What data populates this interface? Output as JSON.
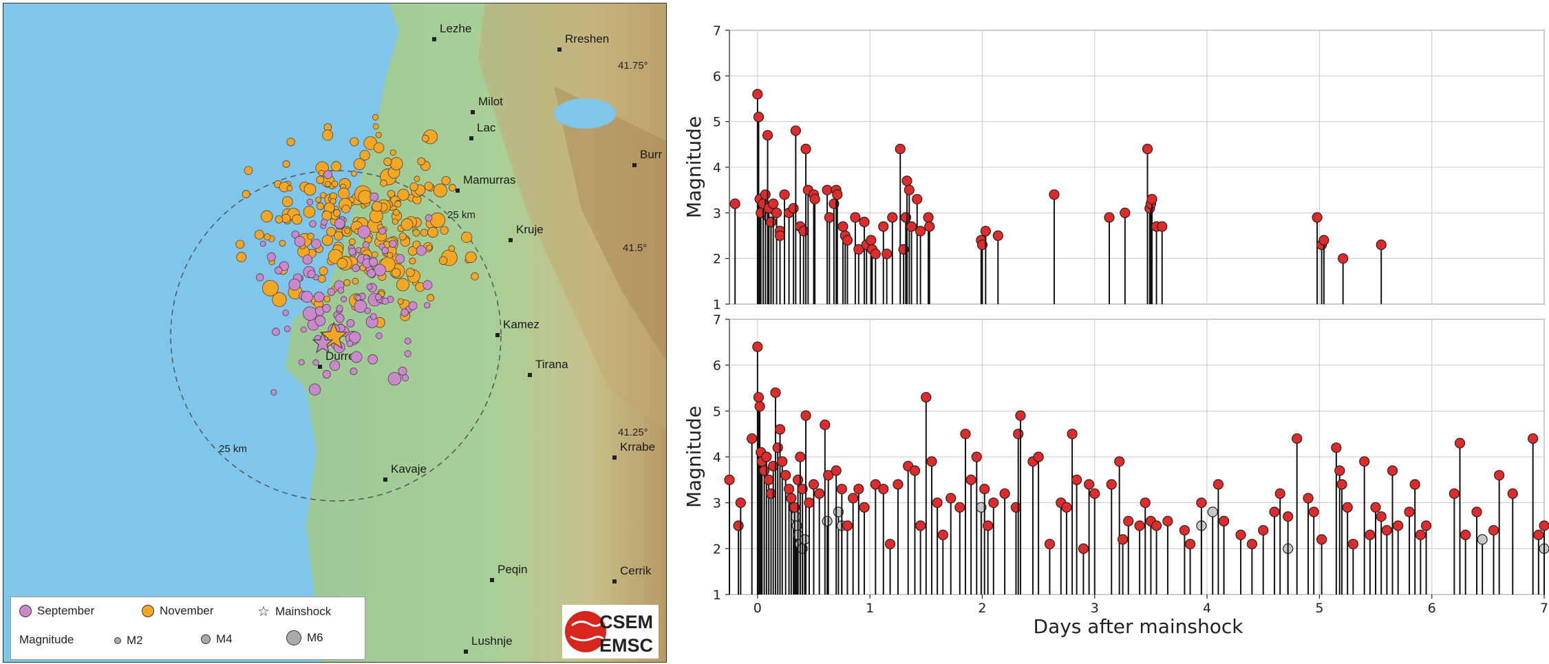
{
  "map": {
    "cities": [
      {
        "name": "Lezhe"
      },
      {
        "name": "Rreshen"
      },
      {
        "name": "Milot"
      },
      {
        "name": "Lac"
      },
      {
        "name": "Burr"
      },
      {
        "name": "Mamurras"
      },
      {
        "name": "Kruje"
      },
      {
        "name": "Kamez"
      },
      {
        "name": "Tirana"
      },
      {
        "name": "Durres"
      },
      {
        "name": "Kavaje"
      },
      {
        "name": "Krrabe"
      },
      {
        "name": "Peqin"
      },
      {
        "name": "Cerrik"
      },
      {
        "name": "Lushnje"
      }
    ],
    "lat_labels": [
      "41.75°",
      "41.5°",
      "41.25°"
    ],
    "ring_labels": [
      "25 km",
      "25 km"
    ],
    "colors": {
      "september": "#cc88cc",
      "november": "#f5a623",
      "sea": "#7cc4e8",
      "land": "#98c48e"
    }
  },
  "legend": {
    "september": "September",
    "november": "November",
    "mainshock": "Mainshock",
    "magnitude": "Magnitude",
    "m2": "M2",
    "m4": "M4",
    "m6": "M6"
  },
  "logo": {
    "line1": "CSEM",
    "line2": "EMSC"
  },
  "chart_data": [
    {
      "type": "scatter",
      "title": "",
      "xlabel": "",
      "ylabel": "Magnitude",
      "xlim": [
        -0.25,
        7
      ],
      "ylim": [
        1,
        7
      ],
      "x_ticks": [],
      "y_ticks": [
        1,
        2,
        3,
        4,
        5,
        6,
        7
      ],
      "grid": true,
      "colors": {
        "marker": "#e02b2b",
        "grey_marker": "#c8c8c8",
        "stem": "#111111"
      },
      "points": [
        {
          "x": -0.2,
          "y": 3.2
        },
        {
          "x": 0,
          "y": 5.6
        },
        {
          "x": 0.01,
          "y": 5.1
        },
        {
          "x": 0.02,
          "y": 3.3
        },
        {
          "x": 0.03,
          "y": 3.0
        },
        {
          "x": 0.05,
          "y": 3.2
        },
        {
          "x": 0.07,
          "y": 3.4
        },
        {
          "x": 0.09,
          "y": 4.7
        },
        {
          "x": 0.1,
          "y": 3.1
        },
        {
          "x": 0.12,
          "y": 2.8
        },
        {
          "x": 0.14,
          "y": 3.2
        },
        {
          "x": 0.17,
          "y": 3.0
        },
        {
          "x": 0.2,
          "y": 2.6
        },
        {
          "x": 0.2,
          "y": 2.5
        },
        {
          "x": 0.24,
          "y": 3.4
        },
        {
          "x": 0.28,
          "y": 3.0
        },
        {
          "x": 0.32,
          "y": 3.1
        },
        {
          "x": 0.34,
          "y": 4.8
        },
        {
          "x": 0.38,
          "y": 2.7
        },
        {
          "x": 0.41,
          "y": 2.6
        },
        {
          "x": 0.43,
          "y": 4.4
        },
        {
          "x": 0.45,
          "y": 3.5
        },
        {
          "x": 0.5,
          "y": 3.4
        },
        {
          "x": 0.51,
          "y": 3.3
        },
        {
          "x": 0.62,
          "y": 3.5
        },
        {
          "x": 0.64,
          "y": 2.9
        },
        {
          "x": 0.68,
          "y": 3.2
        },
        {
          "x": 0.7,
          "y": 3.5
        },
        {
          "x": 0.71,
          "y": 3.4
        },
        {
          "x": 0.76,
          "y": 2.7
        },
        {
          "x": 0.78,
          "y": 2.5
        },
        {
          "x": 0.8,
          "y": 2.4
        },
        {
          "x": 0.87,
          "y": 2.9
        },
        {
          "x": 0.9,
          "y": 2.2
        },
        {
          "x": 0.95,
          "y": 2.8
        },
        {
          "x": 0.97,
          "y": 2.3
        },
        {
          "x": 1.01,
          "y": 2.4
        },
        {
          "x": 1.02,
          "y": 2.2
        },
        {
          "x": 1.05,
          "y": 2.1
        },
        {
          "x": 1.12,
          "y": 2.7
        },
        {
          "x": 1.15,
          "y": 2.1
        },
        {
          "x": 1.2,
          "y": 2.9
        },
        {
          "x": 1.27,
          "y": 4.4
        },
        {
          "x": 1.3,
          "y": 2.2
        },
        {
          "x": 1.32,
          "y": 2.9
        },
        {
          "x": 1.33,
          "y": 3.7
        },
        {
          "x": 1.35,
          "y": 3.5
        },
        {
          "x": 1.37,
          "y": 2.7
        },
        {
          "x": 1.42,
          "y": 3.3
        },
        {
          "x": 1.45,
          "y": 2.6
        },
        {
          "x": 1.52,
          "y": 2.9
        },
        {
          "x": 1.53,
          "y": 2.7
        },
        {
          "x": 1.99,
          "y": 2.4
        },
        {
          "x": 2.0,
          "y": 2.3
        },
        {
          "x": 2.03,
          "y": 2.6
        },
        {
          "x": 2.14,
          "y": 2.5
        },
        {
          "x": 2.64,
          "y": 3.4
        },
        {
          "x": 3.13,
          "y": 2.9
        },
        {
          "x": 3.27,
          "y": 3.0
        },
        {
          "x": 3.47,
          "y": 4.4
        },
        {
          "x": 3.49,
          "y": 3.1
        },
        {
          "x": 3.5,
          "y": 3.2
        },
        {
          "x": 3.51,
          "y": 3.3
        },
        {
          "x": 3.55,
          "y": 2.7
        },
        {
          "x": 3.6,
          "y": 2.7
        },
        {
          "x": 4.98,
          "y": 2.9
        },
        {
          "x": 5.02,
          "y": 2.3
        },
        {
          "x": 5.04,
          "y": 2.4
        },
        {
          "x": 5.21,
          "y": 2.0
        },
        {
          "x": 5.55,
          "y": 2.3
        }
      ],
      "grey_points": [
        {
          "x": 0.1,
          "y": 2.9
        },
        {
          "x": 0.12,
          "y": 2.8
        },
        {
          "x": 0.2,
          "y": 2.6
        },
        {
          "x": 1.32,
          "y": 2.9
        }
      ]
    },
    {
      "type": "scatter",
      "title": "",
      "xlabel": "Days after mainshock",
      "ylabel": "Magnitude",
      "xlim": [
        -0.25,
        7
      ],
      "ylim": [
        1,
        7
      ],
      "x_ticks": [
        0,
        1,
        2,
        3,
        4,
        5,
        6,
        7
      ],
      "y_ticks": [
        1,
        2,
        3,
        4,
        5,
        6,
        7
      ],
      "grid": true,
      "colors": {
        "marker": "#e02b2b",
        "grey_marker": "#c8c8c8",
        "stem": "#111111"
      },
      "points": [
        {
          "x": -0.25,
          "y": 3.5
        },
        {
          "x": -0.17,
          "y": 2.5
        },
        {
          "x": -0.15,
          "y": 3.0
        },
        {
          "x": -0.05,
          "y": 4.4
        },
        {
          "x": 0,
          "y": 6.4
        },
        {
          "x": 0.01,
          "y": 5.3
        },
        {
          "x": 0.02,
          "y": 5.1
        },
        {
          "x": 0.03,
          "y": 4.1
        },
        {
          "x": 0.04,
          "y": 3.9
        },
        {
          "x": 0.06,
          "y": 3.7
        },
        {
          "x": 0.08,
          "y": 4.0
        },
        {
          "x": 0.1,
          "y": 3.5
        },
        {
          "x": 0.12,
          "y": 3.2
        },
        {
          "x": 0.14,
          "y": 3.8
        },
        {
          "x": 0.16,
          "y": 5.4
        },
        {
          "x": 0.18,
          "y": 4.2
        },
        {
          "x": 0.2,
          "y": 4.6
        },
        {
          "x": 0.22,
          "y": 3.9
        },
        {
          "x": 0.25,
          "y": 3.6
        },
        {
          "x": 0.28,
          "y": 3.3
        },
        {
          "x": 0.3,
          "y": 3.1
        },
        {
          "x": 0.33,
          "y": 2.9
        },
        {
          "x": 0.36,
          "y": 3.5
        },
        {
          "x": 0.38,
          "y": 4.0
        },
        {
          "x": 0.4,
          "y": 3.3
        },
        {
          "x": 0.43,
          "y": 4.9
        },
        {
          "x": 0.46,
          "y": 3.0
        },
        {
          "x": 0.5,
          "y": 3.4
        },
        {
          "x": 0.55,
          "y": 3.2
        },
        {
          "x": 0.6,
          "y": 4.7
        },
        {
          "x": 0.63,
          "y": 3.6
        },
        {
          "x": 0.7,
          "y": 3.7
        },
        {
          "x": 0.75,
          "y": 3.3
        },
        {
          "x": 0.8,
          "y": 2.5
        },
        {
          "x": 0.85,
          "y": 3.1
        },
        {
          "x": 0.9,
          "y": 3.3
        },
        {
          "x": 0.95,
          "y": 2.9
        },
        {
          "x": 1.05,
          "y": 3.4
        },
        {
          "x": 1.12,
          "y": 3.3
        },
        {
          "x": 1.18,
          "y": 2.1
        },
        {
          "x": 1.25,
          "y": 3.4
        },
        {
          "x": 1.34,
          "y": 3.8
        },
        {
          "x": 1.4,
          "y": 3.7
        },
        {
          "x": 1.45,
          "y": 2.5
        },
        {
          "x": 1.5,
          "y": 5.3
        },
        {
          "x": 1.55,
          "y": 3.9
        },
        {
          "x": 1.6,
          "y": 3.0
        },
        {
          "x": 1.65,
          "y": 2.3
        },
        {
          "x": 1.72,
          "y": 3.1
        },
        {
          "x": 1.8,
          "y": 2.9
        },
        {
          "x": 1.85,
          "y": 4.5
        },
        {
          "x": 1.9,
          "y": 3.5
        },
        {
          "x": 1.95,
          "y": 4.0
        },
        {
          "x": 2.02,
          "y": 3.3
        },
        {
          "x": 2.05,
          "y": 2.5
        },
        {
          "x": 2.1,
          "y": 3.0
        },
        {
          "x": 2.2,
          "y": 3.2
        },
        {
          "x": 2.3,
          "y": 2.9
        },
        {
          "x": 2.32,
          "y": 4.5
        },
        {
          "x": 2.34,
          "y": 4.9
        },
        {
          "x": 2.45,
          "y": 3.9
        },
        {
          "x": 2.5,
          "y": 4.0
        },
        {
          "x": 2.6,
          "y": 2.1
        },
        {
          "x": 2.7,
          "y": 3.0
        },
        {
          "x": 2.75,
          "y": 2.9
        },
        {
          "x": 2.8,
          "y": 4.5
        },
        {
          "x": 2.84,
          "y": 3.5
        },
        {
          "x": 2.9,
          "y": 2.0
        },
        {
          "x": 2.95,
          "y": 3.4
        },
        {
          "x": 3.0,
          "y": 3.2
        },
        {
          "x": 3.15,
          "y": 3.4
        },
        {
          "x": 3.22,
          "y": 3.9
        },
        {
          "x": 3.25,
          "y": 2.2
        },
        {
          "x": 3.3,
          "y": 2.6
        },
        {
          "x": 3.4,
          "y": 2.5
        },
        {
          "x": 3.45,
          "y": 3.0
        },
        {
          "x": 3.5,
          "y": 2.6
        },
        {
          "x": 3.55,
          "y": 2.5
        },
        {
          "x": 3.65,
          "y": 2.6
        },
        {
          "x": 3.8,
          "y": 2.4
        },
        {
          "x": 3.85,
          "y": 2.1
        },
        {
          "x": 3.95,
          "y": 3.0
        },
        {
          "x": 4.1,
          "y": 3.4
        },
        {
          "x": 4.15,
          "y": 2.6
        },
        {
          "x": 4.3,
          "y": 2.3
        },
        {
          "x": 4.4,
          "y": 2.1
        },
        {
          "x": 4.5,
          "y": 2.4
        },
        {
          "x": 4.6,
          "y": 2.8
        },
        {
          "x": 4.65,
          "y": 3.2
        },
        {
          "x": 4.72,
          "y": 2.7
        },
        {
          "x": 4.8,
          "y": 4.4
        },
        {
          "x": 4.9,
          "y": 3.1
        },
        {
          "x": 4.95,
          "y": 2.8
        },
        {
          "x": 5.02,
          "y": 2.2
        },
        {
          "x": 5.15,
          "y": 4.2
        },
        {
          "x": 5.18,
          "y": 3.7
        },
        {
          "x": 5.2,
          "y": 3.4
        },
        {
          "x": 5.25,
          "y": 2.9
        },
        {
          "x": 5.3,
          "y": 2.1
        },
        {
          "x": 5.4,
          "y": 3.9
        },
        {
          "x": 5.45,
          "y": 2.3
        },
        {
          "x": 5.5,
          "y": 2.9
        },
        {
          "x": 5.55,
          "y": 2.7
        },
        {
          "x": 5.6,
          "y": 2.4
        },
        {
          "x": 5.65,
          "y": 3.7
        },
        {
          "x": 5.7,
          "y": 2.5
        },
        {
          "x": 5.8,
          "y": 2.8
        },
        {
          "x": 5.85,
          "y": 3.4
        },
        {
          "x": 5.9,
          "y": 2.3
        },
        {
          "x": 5.95,
          "y": 2.5
        },
        {
          "x": 6.2,
          "y": 3.2
        },
        {
          "x": 6.25,
          "y": 4.3
        },
        {
          "x": 6.3,
          "y": 2.3
        },
        {
          "x": 6.4,
          "y": 2.8
        },
        {
          "x": 6.55,
          "y": 2.4
        },
        {
          "x": 6.6,
          "y": 3.6
        },
        {
          "x": 6.72,
          "y": 3.2
        },
        {
          "x": 6.9,
          "y": 4.4
        },
        {
          "x": 6.95,
          "y": 2.3
        },
        {
          "x": 7.0,
          "y": 2.5
        }
      ],
      "grey_points": [
        {
          "x": 0.32,
          "y": 2.9
        },
        {
          "x": 0.34,
          "y": 2.7
        },
        {
          "x": 0.35,
          "y": 2.5
        },
        {
          "x": 0.36,
          "y": 2.3
        },
        {
          "x": 0.38,
          "y": 2.1
        },
        {
          "x": 0.4,
          "y": 2.0
        },
        {
          "x": 0.42,
          "y": 2.2
        },
        {
          "x": 0.62,
          "y": 2.6
        },
        {
          "x": 0.72,
          "y": 2.8
        },
        {
          "x": 0.75,
          "y": 2.5
        },
        {
          "x": 1.99,
          "y": 2.9
        },
        {
          "x": 3.95,
          "y": 2.5
        },
        {
          "x": 4.05,
          "y": 2.8
        },
        {
          "x": 4.15,
          "y": 2.6
        },
        {
          "x": 4.72,
          "y": 2.0
        },
        {
          "x": 6.45,
          "y": 2.2
        },
        {
          "x": 7.0,
          "y": 2.0
        }
      ]
    }
  ]
}
